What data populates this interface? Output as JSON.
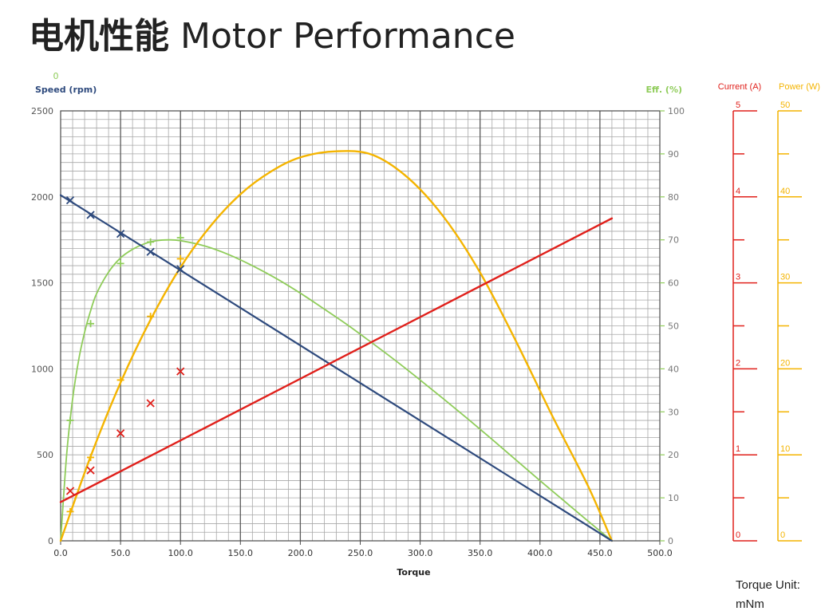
{
  "title": {
    "zh": "电机性能",
    "en": "Motor Performance"
  },
  "torque_unit": "Torque Unit: mNm",
  "colors": {
    "speed": "#2e4a7d",
    "efficiency": "#8fcc5a",
    "current": "#e0201b",
    "power": "#f4b400",
    "grid": "#9a9a9a",
    "axis_text": "#555555"
  },
  "chart_data": {
    "type": "line",
    "x_axis": {
      "label": "Torque",
      "min": 0,
      "max": 500,
      "step": 50,
      "ticks": [
        "0.0",
        "50.0",
        "100.0",
        "150.0",
        "200.0",
        "250.0",
        "300.0",
        "350.0",
        "400.0",
        "450.0",
        "500.0"
      ]
    },
    "left_axis": {
      "label": "Speed (rpm)",
      "min": 0,
      "max": 2500,
      "ticks": [
        "0",
        "500",
        "1000",
        "1500",
        "2000",
        "2500"
      ],
      "top_extra": "0"
    },
    "right_axis": {
      "label": "Eff. (%)",
      "min": 0,
      "max": 100,
      "ticks": [
        "0",
        "10",
        "20",
        "30",
        "40",
        "50",
        "60",
        "70",
        "80",
        "90",
        "100"
      ]
    },
    "current_axis": {
      "label": "Current (A)",
      "min": 0,
      "max": 5,
      "ticks": [
        "0",
        "1",
        "2",
        "3",
        "4",
        "5"
      ]
    },
    "power_axis": {
      "label": "Power (W)",
      "min": 0,
      "max": 50,
      "ticks": [
        "0",
        "10",
        "20",
        "30",
        "40",
        "50"
      ]
    },
    "grid": true,
    "series": [
      {
        "name": "Speed (rpm)",
        "axis": "left",
        "x": [
          0,
          460
        ],
        "y": [
          2010,
          0
        ],
        "markers": [
          [
            8,
            1980
          ],
          [
            25,
            1895
          ],
          [
            50,
            1785
          ],
          [
            75,
            1680
          ],
          [
            100,
            1580
          ]
        ]
      },
      {
        "name": "Eff. (%)",
        "axis": "right",
        "x": [
          0,
          5,
          10,
          15,
          20,
          25,
          30,
          40,
          50,
          60,
          70,
          80,
          90,
          100,
          120,
          140,
          160,
          180,
          200,
          220,
          240,
          260,
          280,
          300,
          320,
          340,
          360,
          380,
          400,
          420,
          440,
          460
        ],
        "y": [
          0,
          20,
          33,
          42,
          48.5,
          53.5,
          57.5,
          62.5,
          65.8,
          67.8,
          69.1,
          69.8,
          70,
          69.8,
          68.6,
          66.6,
          64,
          61,
          57.6,
          53.9,
          50.1,
          46,
          41.8,
          37.4,
          32.9,
          28.3,
          23.6,
          18.8,
          14,
          9.3,
          4.6,
          0
        ],
        "markers": [
          [
            8,
            28
          ],
          [
            25,
            50.5
          ],
          [
            50,
            64.5
          ],
          [
            75,
            69.5
          ],
          [
            100,
            70.5
          ]
        ]
      },
      {
        "name": "Current (A)",
        "axis": "current",
        "x": [
          0,
          460
        ],
        "y": [
          0.45,
          3.75
        ],
        "markers": [
          [
            8,
            0.58
          ],
          [
            25,
            0.82
          ],
          [
            50,
            1.25
          ],
          [
            75,
            1.6
          ],
          [
            100,
            1.97
          ]
        ]
      },
      {
        "name": "Power (W)",
        "axis": "power",
        "x": [
          0,
          25,
          50,
          75,
          100,
          125,
          150,
          175,
          200,
          230,
          260,
          290,
          320,
          350,
          380,
          410,
          440,
          460
        ],
        "y": [
          0,
          9.8,
          18.4,
          25.7,
          31.8,
          36.6,
          40.3,
          42.9,
          44.6,
          45.3,
          44.9,
          42.2,
          37.6,
          31.2,
          23.2,
          14.6,
          6.4,
          0
        ],
        "markers": [
          [
            8,
            3.4
          ],
          [
            25,
            9.7
          ],
          [
            50,
            18.7
          ],
          [
            75,
            26.1
          ],
          [
            100,
            32.8
          ]
        ]
      }
    ]
  }
}
